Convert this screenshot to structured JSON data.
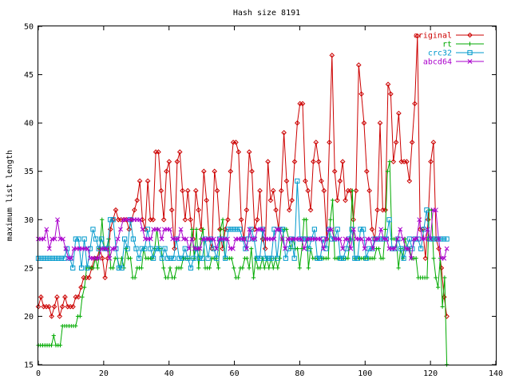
{
  "chart_data": {
    "type": "line",
    "title": "Hash size 8191",
    "xlabel": "",
    "ylabel": "maximum list length",
    "xlim": [
      0,
      140
    ],
    "ylim": [
      15,
      50
    ],
    "xticks": [
      0,
      20,
      40,
      60,
      80,
      100,
      120,
      140
    ],
    "yticks": [
      15,
      20,
      25,
      30,
      35,
      40,
      45,
      50
    ],
    "grid": false,
    "legend_position": "top-right",
    "series": [
      {
        "name": "original",
        "color": "#cc0000",
        "marker": "diamond",
        "values": [
          21,
          22,
          21,
          21,
          21,
          20,
          21,
          22,
          20,
          21,
          22,
          21,
          21,
          21,
          22,
          22,
          23,
          24,
          24,
          24,
          25,
          26,
          26,
          27,
          26,
          24,
          26,
          29,
          30,
          31,
          30,
          30,
          30,
          30,
          29,
          30,
          31,
          32,
          34,
          30,
          29,
          34,
          30,
          30,
          37,
          37,
          33,
          30,
          35,
          36,
          31,
          27,
          36,
          37,
          33,
          30,
          33,
          30,
          28,
          33,
          31,
          29,
          35,
          32,
          28,
          27,
          35,
          33,
          29,
          27,
          29,
          30,
          35,
          38,
          38,
          37,
          30,
          28,
          31,
          37,
          35,
          29,
          30,
          33,
          28,
          27,
          36,
          32,
          33,
          31,
          29,
          33,
          39,
          34,
          31,
          32,
          36,
          40,
          42,
          42,
          34,
          33,
          31,
          36,
          38,
          36,
          34,
          33,
          28,
          38,
          47,
          35,
          32,
          34,
          36,
          32,
          33,
          33,
          30,
          33,
          46,
          43,
          40,
          35,
          33,
          29,
          28,
          31,
          40,
          31,
          31,
          44,
          43,
          36,
          38,
          41,
          36,
          36,
          36,
          34,
          38,
          42,
          49,
          29,
          29,
          26,
          30,
          36,
          38,
          28,
          27,
          25,
          22,
          20
        ]
      },
      {
        "name": "rt",
        "color": "#00aa00",
        "marker": "plus",
        "values": [
          17,
          17,
          17,
          17,
          17,
          17,
          17,
          18,
          17,
          17,
          17,
          19,
          19,
          19,
          19,
          19,
          19,
          19,
          20,
          20,
          22,
          23,
          25,
          25,
          25,
          25,
          26,
          25,
          27,
          30,
          27,
          27,
          28,
          25,
          25,
          26,
          26,
          25,
          26,
          25,
          27,
          26,
          26,
          24,
          24,
          25,
          25,
          25,
          27,
          26,
          26,
          26,
          26,
          27,
          29,
          27,
          27,
          25,
          24,
          24,
          25,
          24,
          24,
          25,
          25,
          25,
          26,
          26,
          26,
          26,
          29,
          26,
          29,
          25,
          28,
          29,
          25,
          25,
          25,
          26,
          26,
          26,
          25,
          29,
          30,
          26,
          26,
          26,
          26,
          25,
          24,
          24,
          25,
          25,
          26,
          26,
          25,
          27,
          24,
          26,
          25,
          25,
          26,
          25,
          26,
          25,
          26,
          25,
          26,
          25,
          26,
          28,
          29,
          29,
          28,
          27,
          28,
          27,
          27,
          25,
          27,
          30,
          30,
          25,
          27,
          26,
          26,
          26,
          26,
          26,
          26,
          26,
          26,
          30,
          32,
          26,
          26,
          26,
          26,
          26,
          26,
          26,
          28,
          33,
          26,
          26,
          26,
          26,
          26,
          26,
          26,
          26,
          26,
          26,
          27,
          27,
          26,
          26,
          29,
          35,
          36,
          28,
          28,
          28,
          25,
          27,
          26,
          28,
          27,
          27,
          26,
          26,
          26,
          24,
          24,
          24,
          24,
          24,
          31,
          31,
          26,
          24,
          23,
          26,
          21,
          24,
          15
        ]
      },
      {
        "name": "crc32",
        "color": "#0099cc",
        "marker": "square",
        "values": [
          26,
          26,
          26,
          26,
          26,
          26,
          26,
          26,
          26,
          26,
          27,
          26,
          25,
          28,
          28,
          25,
          28,
          25,
          27,
          29,
          28,
          27,
          28,
          27,
          27,
          30,
          30,
          27,
          25,
          25,
          28,
          27,
          30,
          28,
          27,
          26,
          27,
          27,
          29,
          27,
          26,
          27,
          27,
          26,
          27,
          26,
          26,
          26,
          28,
          26,
          26,
          27,
          26,
          25,
          26,
          27,
          26,
          26,
          28,
          26,
          28,
          27,
          26,
          28,
          28,
          26,
          29,
          29,
          29,
          29,
          29,
          28,
          27,
          28,
          29,
          28,
          26,
          26,
          29,
          26,
          26,
          26,
          29,
          26,
          29,
          29,
          26,
          27,
          28,
          26,
          34,
          28,
          28,
          28,
          27,
          28,
          29,
          26,
          26,
          28,
          27,
          29,
          28,
          28,
          29,
          26,
          26,
          27,
          28,
          29,
          26,
          26,
          29,
          29,
          26,
          27,
          27,
          28,
          28,
          28,
          28,
          28,
          30,
          27,
          27,
          28,
          27,
          26,
          27,
          28,
          27,
          28,
          28,
          27,
          29,
          31,
          28,
          28,
          28,
          28,
          28,
          28,
          28
        ]
      },
      {
        "name": "abcd64",
        "color": "#aa00cc",
        "marker": "x",
        "values": [
          28,
          28,
          28,
          29,
          27,
          28,
          28,
          30,
          28,
          28,
          27,
          26,
          26,
          27,
          27,
          27,
          27,
          27,
          27,
          26,
          26,
          26,
          26,
          27,
          27,
          27,
          26,
          27,
          27,
          28,
          29,
          30,
          30,
          30,
          30,
          30,
          30,
          30,
          29,
          28,
          28,
          28,
          29,
          29,
          29,
          28,
          29,
          29,
          29,
          28,
          28,
          28,
          29,
          28,
          28,
          27,
          28,
          27,
          27,
          27,
          28,
          28,
          28,
          28,
          28,
          27,
          28,
          28,
          28,
          28,
          27,
          27,
          28,
          28,
          28,
          28,
          27,
          29,
          28,
          28,
          29,
          29,
          29,
          28,
          28,
          28,
          28,
          29,
          29,
          28,
          27,
          28,
          28,
          28,
          28,
          28,
          28,
          27,
          28,
          28,
          28,
          28,
          28,
          28,
          27,
          28,
          29,
          29,
          28,
          28,
          28,
          27,
          28,
          28,
          27,
          29,
          28,
          28,
          28,
          27,
          28,
          28,
          27,
          28,
          28,
          29,
          28,
          28,
          27,
          27,
          27,
          28,
          29,
          28,
          27,
          27,
          26,
          28,
          28,
          30,
          28,
          28,
          29,
          28,
          31,
          31,
          28,
          26,
          26,
          27
        ]
      }
    ]
  }
}
